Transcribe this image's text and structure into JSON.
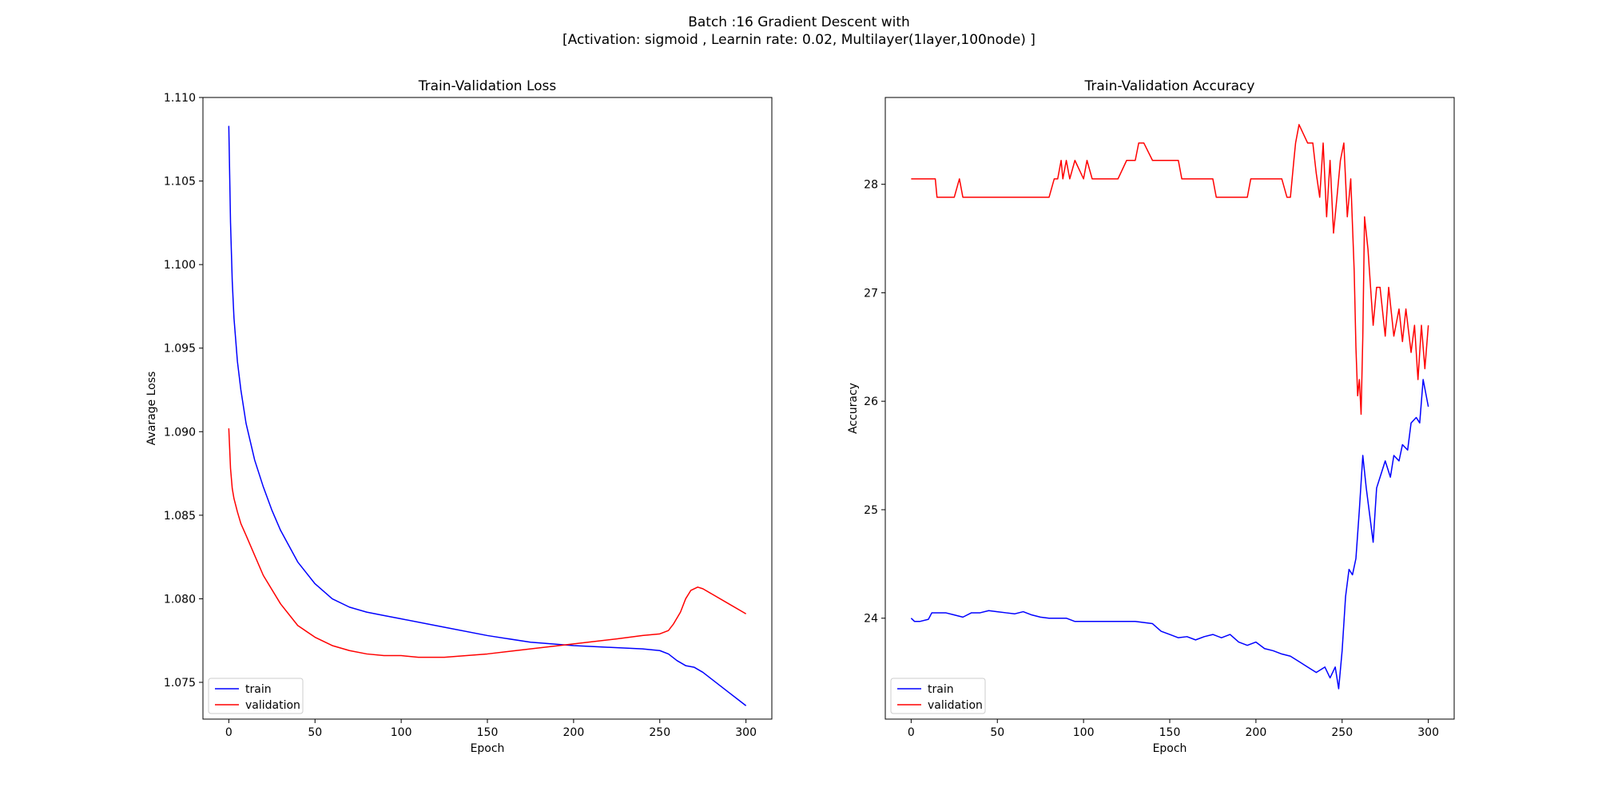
{
  "figure": {
    "title_line1": "Batch :16 Gradient Descent with",
    "title_line2": "[Activation: sigmoid , Learnin rate: 0.02, Multilayer(1layer,100node) ]"
  },
  "chart_data": [
    {
      "type": "line",
      "title": "Train-Validation Loss",
      "xlabel": "Epoch",
      "ylabel": "Avarage Loss",
      "xlim": [
        -15,
        315
      ],
      "ylim": [
        1.0728,
        1.11
      ],
      "xticks": [
        0,
        50,
        100,
        150,
        200,
        250,
        300
      ],
      "yticks": [
        1.075,
        1.08,
        1.085,
        1.09,
        1.095,
        1.1,
        1.105,
        1.11
      ],
      "ytick_decimals": 3,
      "legend": "lower-left",
      "grid": false,
      "series": [
        {
          "name": "train",
          "color": "#0000ff",
          "x": [
            0,
            1,
            2,
            3,
            5,
            7,
            10,
            15,
            20,
            25,
            30,
            40,
            50,
            60,
            70,
            80,
            90,
            100,
            125,
            150,
            175,
            200,
            220,
            240,
            250,
            255,
            260,
            265,
            270,
            275,
            280,
            285,
            290,
            295,
            300
          ],
          "y": [
            1.1083,
            1.1025,
            1.099,
            1.0968,
            1.0942,
            1.0925,
            1.0905,
            1.0883,
            1.0867,
            1.0853,
            1.0841,
            1.0822,
            1.0809,
            1.08,
            1.0795,
            1.0792,
            1.079,
            1.0788,
            1.0783,
            1.0778,
            1.0774,
            1.0772,
            1.0771,
            1.077,
            1.0769,
            1.0767,
            1.0763,
            1.076,
            1.0759,
            1.0756,
            1.0752,
            1.0748,
            1.0744,
            1.074,
            1.0736
          ]
        },
        {
          "name": "validation",
          "color": "#ff0000",
          "x": [
            0,
            1,
            2,
            3,
            5,
            7,
            10,
            15,
            20,
            30,
            40,
            50,
            60,
            70,
            80,
            90,
            100,
            110,
            125,
            150,
            175,
            200,
            225,
            240,
            250,
            255,
            258,
            262,
            265,
            268,
            272,
            275,
            280,
            290,
            300
          ],
          "y": [
            1.0902,
            1.0878,
            1.0866,
            1.086,
            1.0852,
            1.0845,
            1.0838,
            1.0826,
            1.0814,
            1.0797,
            1.0784,
            1.0777,
            1.0772,
            1.0769,
            1.0767,
            1.0766,
            1.0766,
            1.0765,
            1.0765,
            1.0767,
            1.077,
            1.0773,
            1.0776,
            1.0778,
            1.0779,
            1.0781,
            1.0785,
            1.0792,
            1.08,
            1.0805,
            1.0807,
            1.0806,
            1.0803,
            1.0797,
            1.0791
          ]
        }
      ]
    },
    {
      "type": "line",
      "title": "Train-Validation Accuracy",
      "xlabel": "Epoch",
      "ylabel": "Accuracy",
      "xlim": [
        -15,
        315
      ],
      "ylim": [
        23.07,
        28.8
      ],
      "xticks": [
        0,
        50,
        100,
        150,
        200,
        250,
        300
      ],
      "yticks": [
        24,
        25,
        26,
        27,
        28
      ],
      "ytick_decimals": 0,
      "legend": "lower-left",
      "grid": false,
      "series": [
        {
          "name": "train",
          "color": "#0000ff",
          "x": [
            0,
            2,
            5,
            10,
            12,
            15,
            20,
            25,
            30,
            35,
            40,
            45,
            50,
            55,
            60,
            65,
            70,
            75,
            80,
            85,
            90,
            95,
            100,
            110,
            120,
            130,
            140,
            145,
            150,
            155,
            160,
            165,
            170,
            175,
            180,
            185,
            190,
            195,
            200,
            205,
            210,
            215,
            220,
            225,
            230,
            235,
            240,
            243,
            246,
            248,
            250,
            252,
            254,
            256,
            258,
            260,
            262,
            264,
            266,
            268,
            270,
            272,
            275,
            278,
            280,
            283,
            285,
            288,
            290,
            293,
            295,
            297,
            300
          ],
          "y": [
            24.0,
            23.97,
            23.97,
            23.99,
            24.05,
            24.05,
            24.05,
            24.03,
            24.01,
            24.05,
            24.05,
            24.07,
            24.06,
            24.05,
            24.04,
            24.06,
            24.03,
            24.01,
            24.0,
            24.0,
            24.0,
            23.97,
            23.97,
            23.97,
            23.97,
            23.97,
            23.95,
            23.88,
            23.85,
            23.82,
            23.83,
            23.8,
            23.83,
            23.85,
            23.82,
            23.85,
            23.78,
            23.75,
            23.78,
            23.72,
            23.7,
            23.67,
            23.65,
            23.6,
            23.55,
            23.5,
            23.55,
            23.45,
            23.55,
            23.35,
            23.7,
            24.2,
            24.45,
            24.4,
            24.55,
            25.0,
            25.5,
            25.2,
            24.95,
            24.7,
            25.2,
            25.3,
            25.45,
            25.3,
            25.5,
            25.45,
            25.6,
            25.55,
            25.8,
            25.85,
            25.8,
            26.2,
            25.95
          ]
        },
        {
          "name": "validation",
          "color": "#ff0000",
          "x": [
            0,
            5,
            10,
            14,
            15,
            20,
            25,
            28,
            30,
            35,
            40,
            50,
            60,
            70,
            80,
            83,
            85,
            87,
            88,
            90,
            92,
            95,
            100,
            102,
            105,
            110,
            120,
            125,
            130,
            132,
            135,
            140,
            150,
            155,
            157,
            160,
            170,
            175,
            177,
            180,
            190,
            195,
            197,
            200,
            210,
            215,
            218,
            220,
            222,
            223,
            225,
            230,
            233,
            235,
            237,
            239,
            241,
            243,
            245,
            247,
            249,
            251,
            253,
            255,
            257,
            258,
            259,
            260,
            261,
            262,
            263,
            265,
            268,
            270,
            272,
            275,
            277,
            280,
            283,
            285,
            287,
            290,
            292,
            294,
            296,
            298,
            300
          ],
          "y": [
            28.05,
            28.05,
            28.05,
            28.05,
            27.88,
            27.88,
            27.88,
            28.05,
            27.88,
            27.88,
            27.88,
            27.88,
            27.88,
            27.88,
            27.88,
            28.05,
            28.05,
            28.22,
            28.05,
            28.22,
            28.05,
            28.22,
            28.05,
            28.22,
            28.05,
            28.05,
            28.05,
            28.22,
            28.22,
            28.38,
            28.38,
            28.22,
            28.22,
            28.22,
            28.05,
            28.05,
            28.05,
            28.05,
            27.88,
            27.88,
            27.88,
            27.88,
            28.05,
            28.05,
            28.05,
            28.05,
            27.88,
            27.88,
            28.22,
            28.38,
            28.55,
            28.38,
            28.38,
            28.1,
            27.88,
            28.38,
            27.7,
            28.22,
            27.55,
            27.88,
            28.22,
            28.38,
            27.7,
            28.05,
            27.2,
            26.5,
            26.05,
            26.2,
            25.88,
            26.6,
            27.7,
            27.4,
            26.7,
            27.05,
            27.05,
            26.6,
            27.05,
            26.6,
            26.85,
            26.55,
            26.85,
            26.45,
            26.7,
            26.2,
            26.7,
            26.3,
            26.7
          ]
        }
      ]
    }
  ]
}
